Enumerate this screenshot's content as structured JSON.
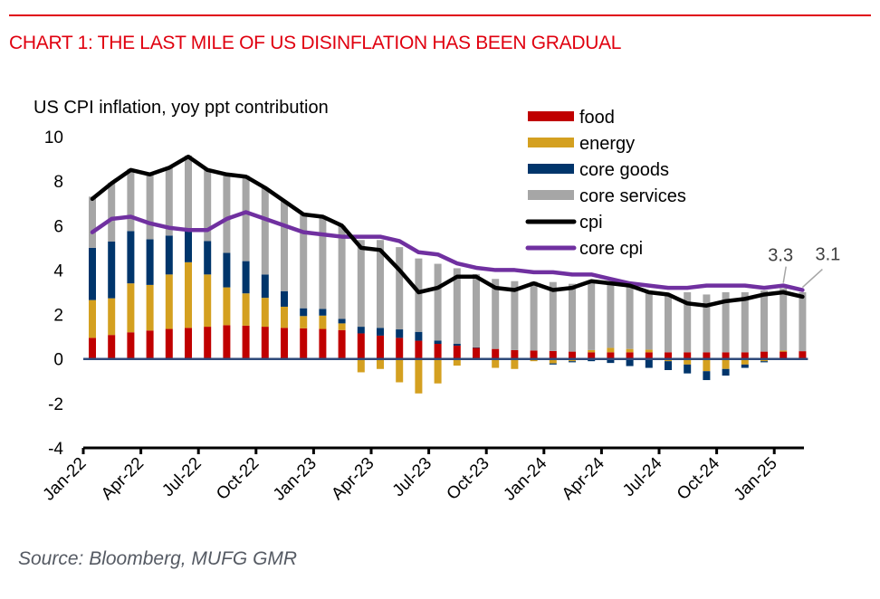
{
  "header": {
    "title": "CHART 1: THE LAST MILE OF US DISINFLATION HAS BEEN GRADUAL",
    "accent_color": "#e0000f"
  },
  "footer": {
    "source": "Source: Bloomberg, MUFG GMR"
  },
  "chart_data": {
    "type": "bar",
    "subtype": "stacked bar with line overlays",
    "title": "CHART 1: THE LAST MILE OF US DISINFLATION HAS BEEN GRADUAL",
    "ylabel": "US CPI inflation, yoy ppt contribution",
    "xlabel": "",
    "ylim": [
      -4,
      10
    ],
    "yticks": [
      10,
      8,
      6,
      4,
      2,
      0,
      -2,
      -4
    ],
    "grid": false,
    "legend_position": "top-right",
    "categories": [
      "Jan-22",
      "Feb-22",
      "Mar-22",
      "Apr-22",
      "May-22",
      "Jun-22",
      "Jul-22",
      "Aug-22",
      "Sep-22",
      "Oct-22",
      "Nov-22",
      "Dec-22",
      "Jan-23",
      "Feb-23",
      "Mar-23",
      "Apr-23",
      "May-23",
      "Jun-23",
      "Jul-23",
      "Aug-23",
      "Sep-23",
      "Oct-23",
      "Nov-23",
      "Dec-23",
      "Jan-24",
      "Feb-24",
      "Mar-24",
      "Apr-24",
      "May-24",
      "Jun-24",
      "Jul-24",
      "Aug-24",
      "Sep-24",
      "Oct-24",
      "Nov-24",
      "Dec-24",
      "Jan-25",
      "Feb-25"
    ],
    "xtick_labels": [
      "Jan-22",
      "Apr-22",
      "Jul-22",
      "Oct-22",
      "Jan-23",
      "Apr-23",
      "Jul-23",
      "Oct-23",
      "Jan-24",
      "Apr-24",
      "Jul-24",
      "Oct-24",
      "Jan-25"
    ],
    "series": [
      {
        "name": "food",
        "kind": "bar",
        "color": "#c00000",
        "values": [
          0.95,
          1.08,
          1.2,
          1.28,
          1.35,
          1.4,
          1.45,
          1.52,
          1.5,
          1.45,
          1.4,
          1.38,
          1.35,
          1.3,
          1.15,
          1.05,
          0.95,
          0.82,
          0.68,
          0.6,
          0.5,
          0.45,
          0.4,
          0.38,
          0.36,
          0.33,
          0.3,
          0.3,
          0.3,
          0.3,
          0.3,
          0.3,
          0.3,
          0.3,
          0.3,
          0.33,
          0.33,
          0.35
        ]
      },
      {
        "name": "energy",
        "kind": "bar",
        "color": "#d4a020",
        "values": [
          1.7,
          1.65,
          2.2,
          2.05,
          2.45,
          2.95,
          2.35,
          1.7,
          1.45,
          1.3,
          0.95,
          0.55,
          0.6,
          0.3,
          -0.6,
          -0.45,
          -1.05,
          -1.55,
          -1.1,
          -0.3,
          0.0,
          -0.4,
          -0.45,
          -0.1,
          -0.2,
          -0.1,
          0.1,
          0.2,
          0.15,
          0.12,
          -0.1,
          -0.25,
          -0.55,
          -0.45,
          -0.25,
          -0.1,
          0.05,
          0.0
        ]
      },
      {
        "name": "core goods",
        "kind": "bar",
        "color": "#00356b",
        "values": [
          2.35,
          2.55,
          2.35,
          2.05,
          1.75,
          1.45,
          1.5,
          1.55,
          1.45,
          1.05,
          0.7,
          0.35,
          0.3,
          0.2,
          0.3,
          0.35,
          0.38,
          0.4,
          0.15,
          0.08,
          0.02,
          0.0,
          0.0,
          0.0,
          -0.05,
          -0.05,
          -0.1,
          -0.18,
          -0.32,
          -0.4,
          -0.4,
          -0.4,
          -0.4,
          -0.3,
          -0.15,
          -0.05,
          0.0,
          0.0
        ]
      },
      {
        "name": "core services",
        "kind": "bar",
        "color": "#a6a6a6",
        "values": [
          2.3,
          2.65,
          2.8,
          2.9,
          3.1,
          3.35,
          3.25,
          3.55,
          3.85,
          3.9,
          4.05,
          4.2,
          4.15,
          4.2,
          3.9,
          3.95,
          3.7,
          3.3,
          3.45,
          3.4,
          3.3,
          3.15,
          3.1,
          3.1,
          3.1,
          3.05,
          3.1,
          3.0,
          2.85,
          2.6,
          2.6,
          2.7,
          2.6,
          2.7,
          2.7,
          2.75,
          2.8,
          2.65
        ]
      },
      {
        "name": "cpi",
        "kind": "line",
        "color": "#000000",
        "values": [
          7.2,
          7.9,
          8.5,
          8.3,
          8.6,
          9.1,
          8.5,
          8.3,
          8.2,
          7.7,
          7.1,
          6.5,
          6.4,
          6.0,
          5.0,
          4.9,
          4.0,
          3.0,
          3.2,
          3.7,
          3.7,
          3.2,
          3.1,
          3.4,
          3.1,
          3.2,
          3.5,
          3.4,
          3.3,
          3.0,
          2.9,
          2.5,
          2.4,
          2.6,
          2.7,
          2.9,
          3.0,
          2.8
        ]
      },
      {
        "name": "core cpi",
        "kind": "line",
        "color": "#7030a0",
        "values": [
          5.7,
          6.3,
          6.4,
          6.1,
          5.9,
          5.8,
          5.8,
          6.3,
          6.6,
          6.3,
          6.0,
          5.7,
          5.6,
          5.5,
          5.5,
          5.5,
          5.3,
          4.8,
          4.7,
          4.3,
          4.1,
          4.0,
          4.0,
          3.9,
          3.9,
          3.8,
          3.8,
          3.6,
          3.4,
          3.3,
          3.2,
          3.2,
          3.3,
          3.3,
          3.3,
          3.2,
          3.3,
          3.1
        ]
      }
    ],
    "annotations": [
      {
        "text": "3.3",
        "series": "core cpi",
        "category": "Jan-25",
        "value": 3.3
      },
      {
        "text": "3.1",
        "series": "core cpi",
        "category": "Feb-25",
        "value": 3.1
      }
    ]
  }
}
